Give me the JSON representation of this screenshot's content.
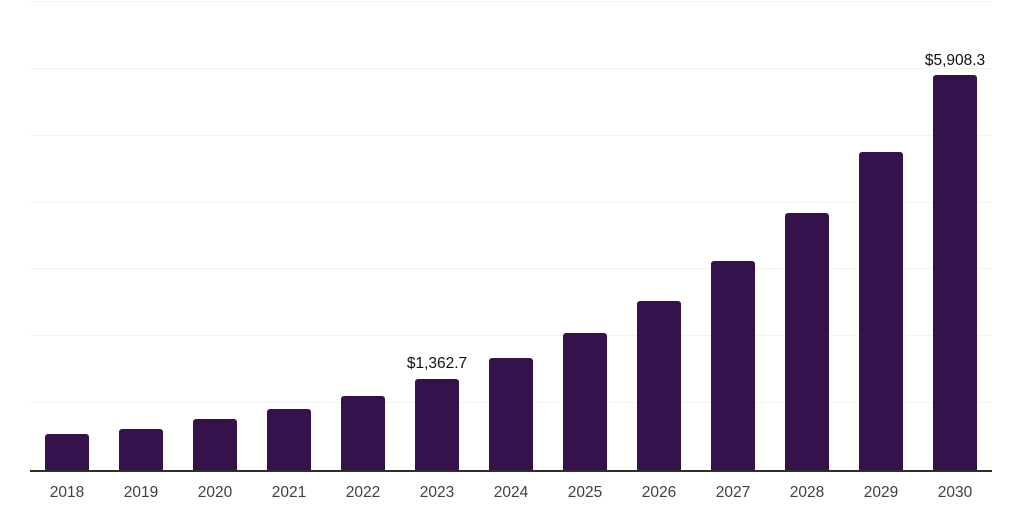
{
  "chart_data": {
    "type": "bar",
    "title": "",
    "xlabel": "",
    "ylabel": "",
    "categories": [
      "2018",
      "2019",
      "2020",
      "2021",
      "2022",
      "2023",
      "2024",
      "2025",
      "2026",
      "2027",
      "2028",
      "2029",
      "2030"
    ],
    "values": [
      540,
      620,
      770,
      910,
      1110,
      1362.7,
      1680,
      2050,
      2530,
      3130,
      3850,
      4760,
      5908.3
    ],
    "value_labels": {
      "2023": "$1,362.7",
      "2030": "$5,908.3"
    },
    "ylim": [
      0,
      7000
    ],
    "gridline_interval": 1000,
    "grid": "horizontal-only",
    "legend": "none",
    "colors": {
      "bar": "#35124B",
      "axis_line": "#2d2d2d",
      "gridline": "#f2f2f2",
      "tick_label": "#3f3f3f",
      "value_label": "#111111",
      "background": "#ffffff"
    }
  }
}
